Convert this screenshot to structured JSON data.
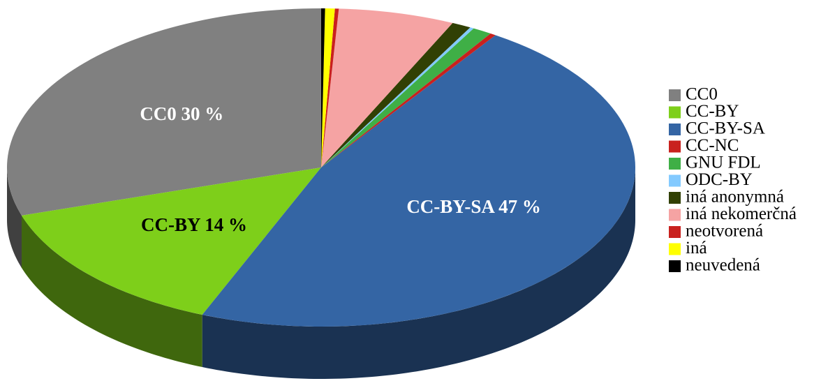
{
  "chart_data": {
    "type": "pie",
    "categories": [
      "CC0",
      "CC-BY",
      "CC-BY-SA",
      "CC-NC",
      "GNU FDL",
      "ODC-BY",
      "iná anonymná",
      "iná nekomerčná",
      "neotvorená",
      "iná",
      "neuvedená"
    ],
    "values": [
      30,
      14,
      47,
      0.3,
      1,
      0.2,
      1,
      6,
      0.2,
      0.5,
      0.2
    ],
    "value_labels": [
      "CC0 30 %",
      "CC-BY 14 %",
      "CC-BY-SA 47 %",
      null,
      null,
      null,
      null,
      null,
      null,
      null,
      null
    ],
    "colors": [
      "#808080",
      "#7ecf1a",
      "#3465a4",
      "#c9211e",
      "#3faf46",
      "#83caff",
      "#314004",
      "#f5a3a3",
      "#c9211e",
      "#ffff00",
      "#000000"
    ],
    "legend": "right"
  }
}
